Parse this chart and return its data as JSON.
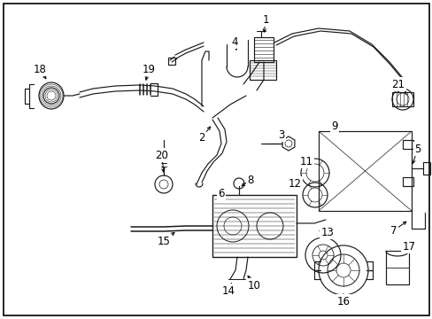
{
  "background_color": "#ffffff",
  "border_color": "#000000",
  "line_color": "#1a1a1a",
  "fig_width": 4.89,
  "fig_height": 3.6,
  "dpi": 100,
  "label_font_size": 8.5,
  "border_lw": 1.2,
  "component_lw": 0.85
}
